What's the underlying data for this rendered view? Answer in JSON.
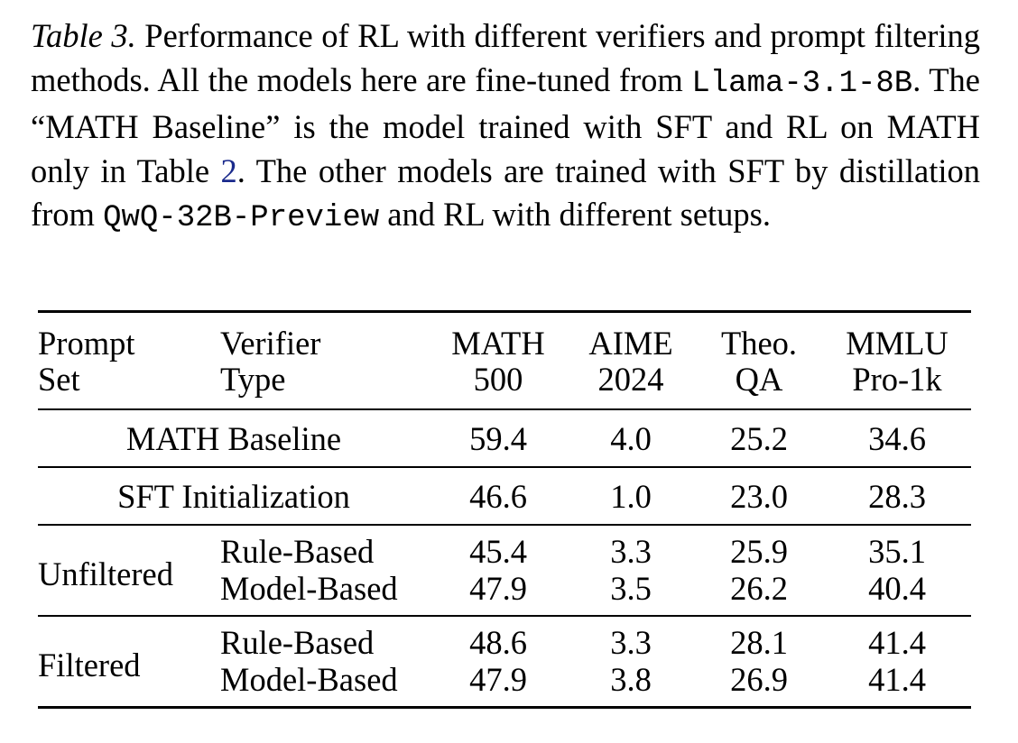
{
  "caption": {
    "label": "Table 3.",
    "text_1": " Performance of RL with different verifiers and prompt filtering methods.  All the models here are fine-tuned from ",
    "model_base": "Llama-3.1-8B",
    "text_2": ". The “MATH Baseline” is the model trained with SFT and RL on MATH only in Table ",
    "table_ref": "2",
    "text_3": ". The other models are trained with SFT by distillation from ",
    "model_teacher": "QwQ-32B-Preview",
    "text_4": " and RL with different setups."
  },
  "table": {
    "headers": {
      "prompt_set_line1": "Prompt",
      "prompt_set_line2": "Set",
      "verifier_line1": "Verifier",
      "verifier_line2": "Type",
      "math500_line1": "MATH",
      "math500_line2": "500",
      "aime_line1": "AIME",
      "aime_line2": "2024",
      "theoqa_line1": "Theo.",
      "theoqa_line2": "QA",
      "mmlu_line1": "MMLU",
      "mmlu_line2": "Pro-1k"
    },
    "math_baseline": {
      "label": "MATH Baseline",
      "math500": "59.4",
      "aime": "4.0",
      "theoqa": "25.2",
      "mmlu": "34.6"
    },
    "sft_init": {
      "label": "SFT Initialization",
      "math500": "46.6",
      "aime": "1.0",
      "theoqa": "23.0",
      "mmlu": "28.3"
    },
    "unfiltered": {
      "label": "Unfiltered",
      "rule": {
        "verifier": "Rule-Based",
        "math500": "45.4",
        "aime": "3.3",
        "theoqa": "25.9",
        "mmlu": "35.1"
      },
      "model": {
        "verifier": "Model-Based",
        "math500": "47.9",
        "aime": "3.5",
        "theoqa": "26.2",
        "mmlu": "40.4"
      }
    },
    "filtered": {
      "label": "Filtered",
      "rule": {
        "verifier": "Rule-Based",
        "math500": "48.6",
        "aime": "3.3",
        "theoqa": "28.1",
        "mmlu": "41.4"
      },
      "model": {
        "verifier": "Model-Based",
        "math500": "47.9",
        "aime": "3.8",
        "theoqa": "26.9",
        "mmlu": "41.4"
      }
    }
  }
}
